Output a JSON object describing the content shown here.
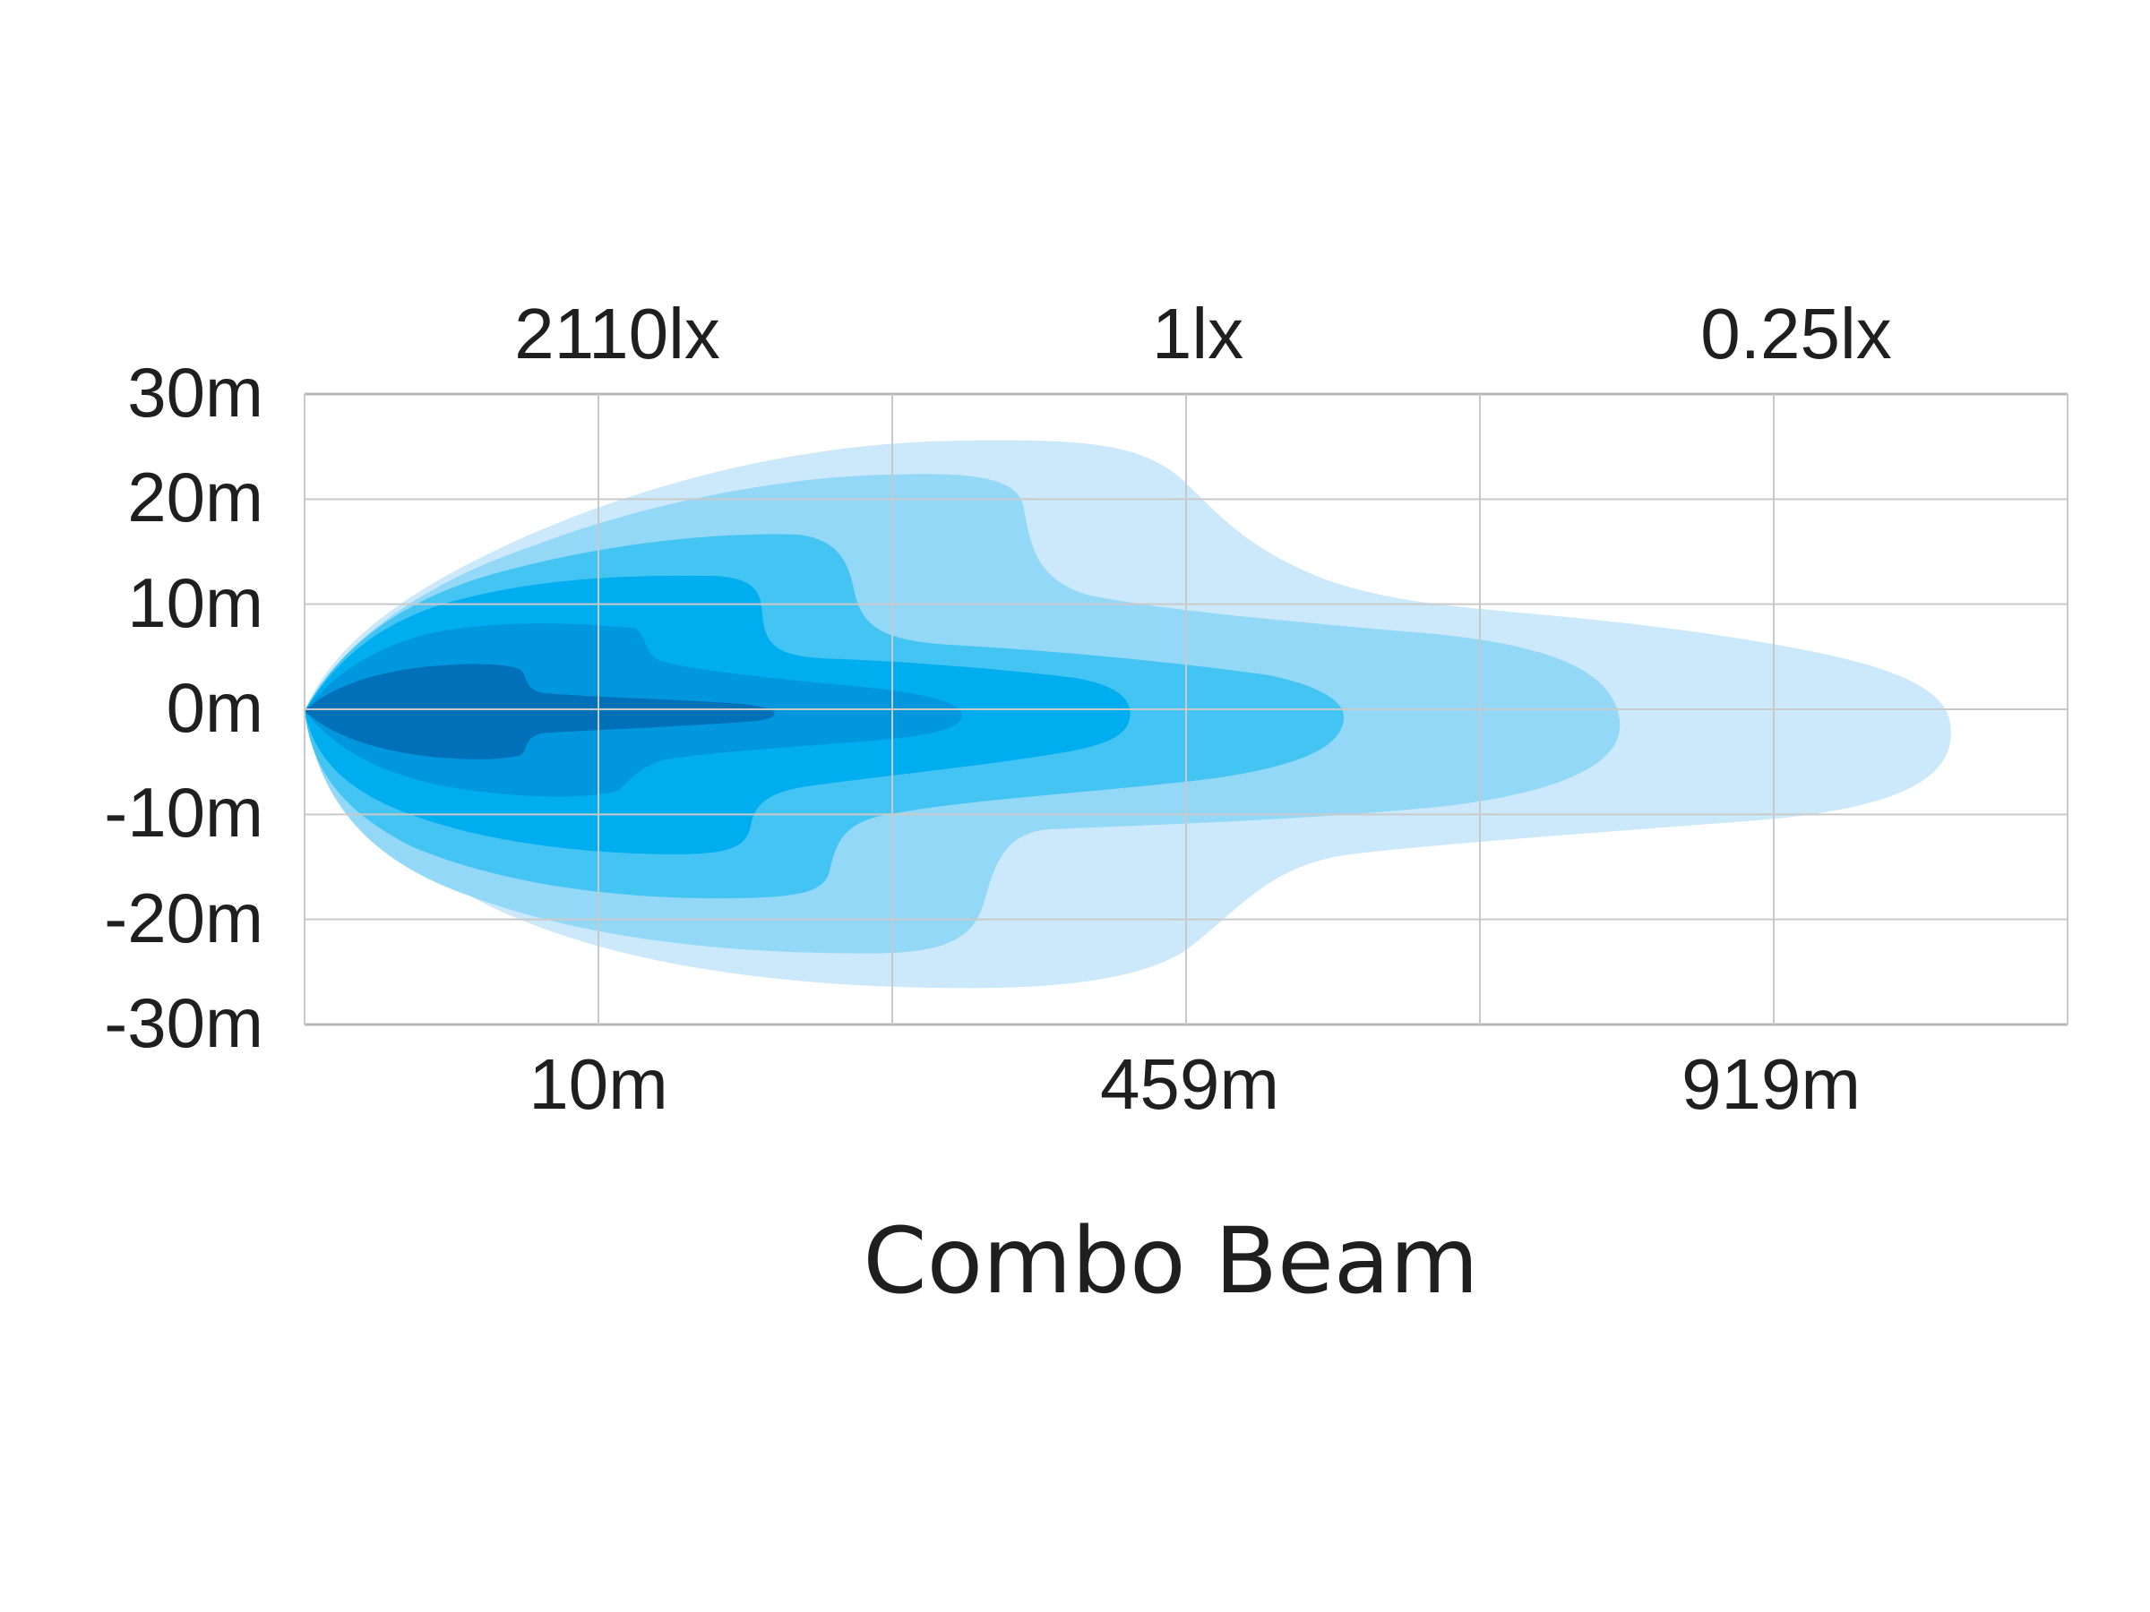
{
  "title": "Combo Beam",
  "y_axis": {
    "ticks": [
      "30m",
      "20m",
      "10m",
      "0m",
      "-10m",
      "-20m",
      "-30m"
    ]
  },
  "x_axis": {
    "ticks": [
      "10m",
      "459m",
      "919m"
    ]
  },
  "lux_labels": [
    "2110lx",
    "1lx",
    "0.25lx"
  ],
  "zone_colors": [
    "#cbe9fa",
    "#94d8f7",
    "#44c4f2",
    "#00aeef",
    "#0097df",
    "#0070b8"
  ],
  "grid": {
    "rows": 6,
    "cols": 6
  }
}
